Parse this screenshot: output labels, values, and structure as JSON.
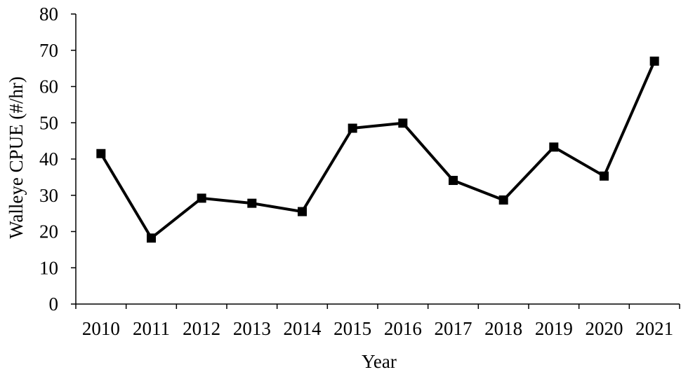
{
  "chart_data": {
    "type": "line",
    "title": "",
    "xlabel": "Year",
    "ylabel": "Walleye CPUE (#/hr)",
    "ylim": [
      0,
      80
    ],
    "yticks": [
      0,
      10,
      20,
      30,
      40,
      50,
      60,
      70,
      80
    ],
    "categories": [
      "2010",
      "2011",
      "2012",
      "2013",
      "2014",
      "2015",
      "2016",
      "2017",
      "2018",
      "2019",
      "2020",
      "2021"
    ],
    "series": [
      {
        "values": [
          41.5,
          18.2,
          29.2,
          27.8,
          25.5,
          48.5,
          49.9,
          34.1,
          28.7,
          43.3,
          35.3,
          67.0
        ],
        "color": "#000000",
        "marker": "square"
      }
    ],
    "grid": false,
    "legend": "none"
  }
}
